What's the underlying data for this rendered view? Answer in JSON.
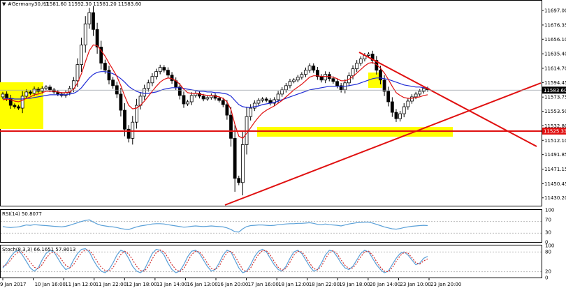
{
  "header": {
    "symbol": "#Germany30,H1",
    "ohlc": "11581.60 11592.30 11581.20 11583.60"
  },
  "chart_data": [
    {
      "type": "candlestick",
      "title": "#Germany30,H1",
      "ylim": [
        11420,
        11710
      ],
      "y_ticks": [
        "11697.00",
        "11676.35",
        "11656.10",
        "11635.40",
        "11614.70",
        "11594.45",
        "11573.75",
        "11553.50",
        "11532.80",
        "11512.10",
        "11491.85",
        "11471.15",
        "11450.45",
        "11430.20"
      ],
      "x_ticks": [
        "9 Jan 2017",
        "10 Jan 16:00",
        "11 Jan 12:00",
        "11 Jan 22:00",
        "12 Jan 18:00",
        "13 Jan 14:00",
        "16 Jan 13:00",
        "16 Jan 20:00",
        "17 Jan 16:00",
        "18 Jan 12:00",
        "18 Jan 22:00",
        "19 Jan 18:00",
        "20 Jan 14:00",
        "23 Jan 10:00",
        "23 Jan 20:00"
      ],
      "current_price": "11583.60",
      "support_price": "11525.33",
      "support_level": 11525.33,
      "closes": [
        11578,
        11572,
        11562,
        11560,
        11558,
        11575,
        11581,
        11579,
        11585,
        11582,
        11586,
        11588,
        11584,
        11581,
        11578,
        11576,
        11580,
        11586,
        11597,
        11620,
        11648,
        11678,
        11694,
        11670,
        11645,
        11622,
        11612,
        11598,
        11590,
        11578,
        11555,
        11528,
        11515,
        11538,
        11562,
        11575,
        11586,
        11594,
        11603,
        11610,
        11616,
        11612,
        11605,
        11597,
        11588,
        11576,
        11564,
        11567,
        11576,
        11579,
        11575,
        11571,
        11573,
        11576,
        11572,
        11569,
        11563,
        11548,
        11515,
        11458,
        11452,
        11506,
        11546,
        11558,
        11565,
        11569,
        11571,
        11569,
        11565,
        11570,
        11578,
        11584,
        11590,
        11596,
        11598,
        11602,
        11606,
        11612,
        11618,
        11612,
        11603,
        11598,
        11606,
        11600,
        11596,
        11590,
        11584,
        11594,
        11604,
        11614,
        11622,
        11628,
        11633,
        11635,
        11626,
        11612,
        11598,
        11582,
        11567,
        11552,
        11543,
        11550,
        11560,
        11568,
        11574,
        11578,
        11582,
        11586,
        11584
      ],
      "ma_fast": [
        11570,
        11571,
        11570,
        11568,
        11567,
        11569,
        11572,
        11574,
        11577,
        11578,
        11580,
        11582,
        11582,
        11582,
        11581,
        11580,
        11580,
        11581,
        11585,
        11594,
        11607,
        11624,
        11640,
        11648,
        11647,
        11640,
        11632,
        11622,
        11613,
        11603,
        11590,
        11575,
        11562,
        11557,
        11558,
        11562,
        11568,
        11575,
        11582,
        11589,
        11595,
        11599,
        11601,
        11600,
        11597,
        11592,
        11585,
        11580,
        11579,
        11579,
        11578,
        11577,
        11576,
        11576,
        11575,
        11574,
        11572,
        11567,
        11556,
        11535,
        11518,
        11515,
        11522,
        11530,
        11538,
        11545,
        11551,
        11555,
        11558,
        11561,
        11565,
        11569,
        11574,
        11579,
        11584,
        11588,
        11592,
        11597,
        11602,
        11604,
        11604,
        11603,
        11603,
        11603,
        11602,
        11600,
        11597,
        11597,
        11599,
        11603,
        11608,
        11613,
        11618,
        11622,
        11623,
        11620,
        11615,
        11608,
        11599,
        11589,
        11580,
        11576,
        11573,
        11572,
        11572,
        11573,
        11574,
        11576,
        11577
      ],
      "ma_slow": [
        11572,
        11572,
        11572,
        11571,
        11571,
        11571,
        11572,
        11572,
        11573,
        11574,
        11575,
        11576,
        11577,
        11577,
        11577,
        11577,
        11577,
        11578,
        11579,
        11582,
        11587,
        11594,
        11601,
        11606,
        11609,
        11610,
        11610,
        11609,
        11607,
        11604,
        11600,
        11595,
        11589,
        11585,
        11582,
        11580,
        11579,
        11579,
        11580,
        11581,
        11583,
        11585,
        11586,
        11587,
        11587,
        11587,
        11586,
        11585,
        11584,
        11583,
        11582,
        11582,
        11581,
        11581,
        11580,
        11580,
        11579,
        11578,
        11575,
        11569,
        11563,
        11560,
        11559,
        11559,
        11560,
        11561,
        11563,
        11564,
        11565,
        11566,
        11568,
        11570,
        11572,
        11574,
        11576,
        11578,
        11580,
        11582,
        11584,
        11585,
        11586,
        11587,
        11588,
        11589,
        11589,
        11589,
        11589,
        11589,
        11590,
        11591,
        11592,
        11594,
        11596,
        11598,
        11600,
        11601,
        11601,
        11600,
        11599,
        11597,
        11595,
        11593,
        11591,
        11590,
        11589,
        11588,
        11588,
        11587,
        11587
      ]
    },
    {
      "type": "line",
      "title": "RSI(14) 50.8077",
      "ylim": [
        0,
        100
      ],
      "y_ticks": [
        "100",
        "70",
        "30",
        "0"
      ],
      "values": [
        48,
        46,
        45,
        46,
        47,
        50,
        53,
        52,
        54,
        53,
        52,
        51,
        50,
        49,
        48,
        47,
        49,
        52,
        56,
        60,
        64,
        67,
        69,
        62,
        56,
        52,
        50,
        48,
        47,
        45,
        42,
        40,
        39,
        43,
        47,
        50,
        52,
        54,
        56,
        57,
        57,
        56,
        54,
        52,
        50,
        48,
        46,
        47,
        49,
        50,
        49,
        48,
        49,
        50,
        49,
        48,
        47,
        44,
        39,
        32,
        31,
        41,
        48,
        51,
        52,
        53,
        53,
        52,
        51,
        52,
        54,
        55,
        56,
        57,
        57,
        58,
        58,
        59,
        60,
        58,
        55,
        54,
        56,
        54,
        53,
        52,
        50,
        53,
        56,
        58,
        60,
        61,
        62,
        62,
        59,
        55,
        51,
        47,
        44,
        41,
        40,
        42,
        45,
        47,
        49,
        50,
        51,
        52,
        51
      ]
    },
    {
      "type": "line",
      "title": "Stoch(8,3,3) 66.1651 57.8013",
      "ylim": [
        0,
        100
      ],
      "y_ticks": [
        "100",
        "80",
        "20",
        "0"
      ],
      "k": [
        30,
        45,
        65,
        80,
        85,
        70,
        50,
        30,
        20,
        30,
        55,
        75,
        85,
        80,
        60,
        40,
        25,
        30,
        55,
        75,
        88,
        90,
        80,
        55,
        35,
        20,
        15,
        25,
        45,
        70,
        85,
        80,
        60,
        35,
        20,
        15,
        25,
        50,
        75,
        88,
        85,
        70,
        45,
        25,
        15,
        20,
        40,
        65,
        82,
        85,
        75,
        55,
        35,
        20,
        25,
        45,
        70,
        85,
        80,
        55,
        30,
        15,
        20,
        40,
        65,
        82,
        88,
        80,
        60,
        40,
        25,
        20,
        35,
        60,
        80,
        85,
        75,
        55,
        35,
        20,
        25,
        45,
        70,
        85,
        82,
        65,
        45,
        30,
        25,
        35,
        55,
        75,
        85,
        80,
        60,
        40,
        25,
        15,
        20,
        40,
        60,
        75,
        80,
        70,
        55,
        40,
        45,
        60,
        66
      ],
      "d": [
        35,
        40,
        55,
        70,
        80,
        78,
        65,
        48,
        32,
        28,
        40,
        60,
        75,
        80,
        72,
        55,
        38,
        30,
        40,
        60,
        78,
        86,
        85,
        70,
        50,
        32,
        22,
        20,
        30,
        52,
        72,
        82,
        74,
        55,
        35,
        22,
        20,
        35,
        58,
        78,
        86,
        80,
        62,
        40,
        25,
        18,
        28,
        50,
        72,
        82,
        80,
        65,
        45,
        28,
        25,
        35,
        58,
        78,
        82,
        68,
        45,
        25,
        18,
        30,
        52,
        72,
        84,
        84,
        70,
        50,
        32,
        23,
        28,
        48,
        70,
        82,
        80,
        65,
        45,
        28,
        24,
        35,
        58,
        78,
        84,
        74,
        55,
        38,
        28,
        30,
        45,
        65,
        80,
        82,
        70,
        50,
        32,
        20,
        18,
        30,
        50,
        68,
        78,
        76,
        62,
        46,
        42,
        52,
        58
      ]
    }
  ]
}
